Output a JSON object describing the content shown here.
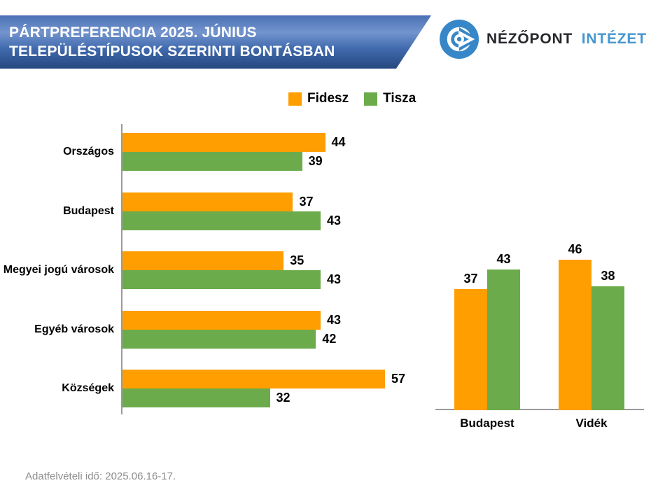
{
  "header": {
    "title_line1": "PÁRTPREFERENCIA 2025. JÚNIUS",
    "title_line2": "TELEPÜLÉSTÍPUSOK SZERINTI BONTÁSBAN"
  },
  "logo": {
    "icon": "nezopont-eye-icon",
    "name_primary": "NÉZŐPONT",
    "name_secondary": "INTÉZET",
    "icon_color": "#3787c8",
    "primary_color": "#26282c",
    "secondary_color": "#4697cf"
  },
  "legend": [
    {
      "label": "Fidesz",
      "color": "#FF9E00"
    },
    {
      "label": "Tisza",
      "color": "#6BAB4B"
    }
  ],
  "colors": {
    "fidesz": "#FF9E00",
    "tisza": "#6BAB4B",
    "axis": "#9a9a9a",
    "banner_top": "#4a71b3",
    "banner_bottom": "#26477f"
  },
  "footer": {
    "note": "Adatfelvételi idő: 2025.06.16-17."
  },
  "chart_data": [
    {
      "type": "bar",
      "orientation": "horizontal",
      "title": "",
      "categories": [
        "Országos",
        "Budapest",
        "Megyei jogú városok",
        "Egyéb városok",
        "Községek"
      ],
      "series": [
        {
          "name": "Fidesz",
          "color": "#FF9E00",
          "values": [
            44,
            37,
            35,
            43,
            57
          ]
        },
        {
          "name": "Tisza",
          "color": "#6BAB4B",
          "values": [
            39,
            43,
            43,
            42,
            32
          ]
        }
      ],
      "xlim": [
        0,
        60
      ],
      "grid": false,
      "data_labels": true,
      "legend_position": "top"
    },
    {
      "type": "bar",
      "orientation": "vertical",
      "title": "",
      "categories": [
        "Budapest",
        "Vidék"
      ],
      "series": [
        {
          "name": "Fidesz",
          "color": "#FF9E00",
          "values": [
            37,
            46
          ]
        },
        {
          "name": "Tisza",
          "color": "#6BAB4B",
          "values": [
            43,
            38
          ]
        }
      ],
      "ylim": [
        0,
        50
      ],
      "grid": false,
      "data_labels": true
    }
  ]
}
